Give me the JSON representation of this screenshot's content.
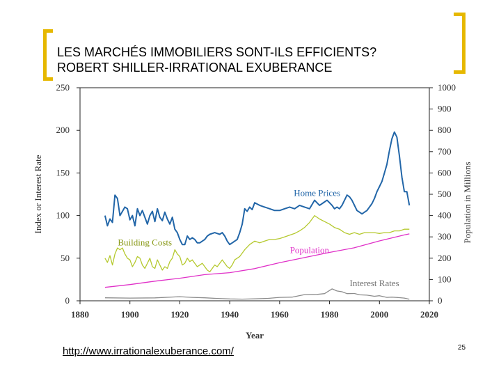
{
  "slide": {
    "title_line1": "LES MARCHÉS IMMOBILIERS SONT-ILS EFFICIENTS?",
    "title_line2": "ROBERT SHILLER-IRRATIONAL EXUBERANCE",
    "url": "http://www.irrationalexuberance.com/",
    "page_number": "25",
    "accent_color": "#e6b800"
  },
  "chart_data": {
    "type": "line",
    "title": "",
    "xlabel": "Year",
    "ylabel": "Index or Interest Rate",
    "y2label": "Population in Millions",
    "xlim": [
      1880,
      2020
    ],
    "ylim": [
      0,
      250
    ],
    "y2lim": [
      0,
      1000
    ],
    "xticks": [
      "1880",
      "1900",
      "1920",
      "1940",
      "1960",
      "1980",
      "2000",
      "2020"
    ],
    "yticks": [
      "0",
      "50",
      "100",
      "150",
      "200",
      "250"
    ],
    "y2ticks": [
      "0",
      "100",
      "200",
      "300",
      "400",
      "500",
      "600",
      "700",
      "800",
      "900",
      "1000"
    ],
    "grid": false,
    "series": [
      {
        "name": "Home Prices",
        "axis": "left",
        "color": "#2266a8",
        "x": [
          1890,
          1891,
          1892,
          1893,
          1894,
          1895,
          1896,
          1897,
          1898,
          1899,
          1900,
          1901,
          1902,
          1903,
          1904,
          1905,
          1906,
          1907,
          1908,
          1909,
          1910,
          1911,
          1912,
          1913,
          1914,
          1915,
          1916,
          1917,
          1918,
          1919,
          1920,
          1921,
          1922,
          1923,
          1924,
          1925,
          1926,
          1927,
          1928,
          1929,
          1930,
          1931,
          1932,
          1933,
          1934,
          1935,
          1936,
          1937,
          1938,
          1939,
          1940,
          1941,
          1942,
          1943,
          1944,
          1945,
          1946,
          1947,
          1948,
          1949,
          1950,
          1952,
          1954,
          1956,
          1958,
          1960,
          1962,
          1964,
          1966,
          1968,
          1970,
          1972,
          1974,
          1976,
          1977,
          1978,
          1979,
          1980,
          1981,
          1982,
          1983,
          1984,
          1985,
          1986,
          1987,
          1988,
          1989,
          1990,
          1991,
          1992,
          1993,
          1994,
          1995,
          1996,
          1997,
          1998,
          1999,
          2000,
          2001,
          2002,
          2003,
          2004,
          2005,
          2006,
          2007,
          2008,
          2009,
          2010,
          2011,
          2012
        ],
        "values": [
          100,
          88,
          96,
          92,
          124,
          120,
          100,
          105,
          110,
          108,
          95,
          100,
          88,
          108,
          100,
          106,
          98,
          90,
          100,
          105,
          93,
          108,
          98,
          94,
          104,
          96,
          90,
          98,
          84,
          80,
          72,
          66,
          66,
          76,
          72,
          74,
          72,
          68,
          68,
          70,
          72,
          76,
          78,
          79,
          80,
          79,
          78,
          80,
          76,
          70,
          66,
          68,
          70,
          72,
          80,
          90,
          108,
          105,
          110,
          107,
          115,
          112,
          110,
          108,
          106,
          106,
          108,
          110,
          108,
          112,
          110,
          108,
          118,
          112,
          114,
          116,
          118,
          115,
          112,
          108,
          110,
          108,
          112,
          118,
          124,
          122,
          118,
          112,
          106,
          104,
          102,
          104,
          106,
          110,
          114,
          120,
          128,
          134,
          140,
          150,
          160,
          176,
          190,
          198,
          192,
          170,
          145,
          128,
          128,
          112
        ]
      },
      {
        "name": "Building Costs",
        "axis": "left",
        "color": "#b5c92e",
        "x": [
          1890,
          1891,
          1892,
          1893,
          1894,
          1895,
          1896,
          1897,
          1898,
          1899,
          1900,
          1901,
          1902,
          1903,
          1904,
          1905,
          1906,
          1907,
          1908,
          1909,
          1910,
          1911,
          1912,
          1913,
          1914,
          1915,
          1916,
          1917,
          1918,
          1919,
          1920,
          1921,
          1922,
          1923,
          1924,
          1925,
          1926,
          1927,
          1928,
          1929,
          1930,
          1931,
          1932,
          1933,
          1934,
          1935,
          1936,
          1937,
          1938,
          1939,
          1940,
          1941,
          1942,
          1943,
          1944,
          1945,
          1946,
          1948,
          1950,
          1952,
          1954,
          1956,
          1958,
          1960,
          1962,
          1964,
          1966,
          1968,
          1970,
          1972,
          1974,
          1976,
          1978,
          1980,
          1982,
          1984,
          1986,
          1988,
          1990,
          1992,
          1994,
          1996,
          1998,
          2000,
          2002,
          2004,
          2006,
          2008,
          2010,
          2012
        ],
        "values": [
          50,
          45,
          53,
          42,
          55,
          62,
          60,
          62,
          55,
          50,
          48,
          40,
          45,
          52,
          50,
          42,
          38,
          44,
          50,
          40,
          38,
          48,
          42,
          36,
          40,
          38,
          46,
          50,
          60,
          55,
          52,
          42,
          44,
          50,
          46,
          48,
          44,
          40,
          42,
          44,
          40,
          36,
          34,
          38,
          42,
          40,
          44,
          48,
          44,
          40,
          38,
          42,
          48,
          50,
          52,
          56,
          60,
          66,
          70,
          68,
          70,
          72,
          72,
          73,
          75,
          77,
          79,
          82,
          86,
          92,
          100,
          96,
          93,
          90,
          86,
          84,
          80,
          78,
          80,
          78,
          80,
          80,
          80,
          79,
          80,
          80,
          82,
          82,
          84,
          84
        ]
      },
      {
        "name": "Population",
        "axis": "right",
        "color": "#e030c8",
        "x": [
          1890,
          1900,
          1910,
          1920,
          1930,
          1940,
          1950,
          1960,
          1970,
          1980,
          1990,
          2000,
          2010,
          2012
        ],
        "values": [
          63,
          76,
          92,
          106,
          123,
          132,
          151,
          179,
          203,
          227,
          249,
          281,
          309,
          314
        ]
      },
      {
        "name": "Interest Rates",
        "axis": "left",
        "color": "#8c8c8c",
        "x": [
          1890,
          1900,
          1910,
          1920,
          1925,
          1930,
          1935,
          1940,
          1945,
          1950,
          1955,
          1960,
          1965,
          1970,
          1975,
          1978,
          1981,
          1983,
          1985,
          1987,
          1990,
          1992,
          1995,
          1998,
          2000,
          2003,
          2005,
          2008,
          2010,
          2012
        ],
        "values": [
          3.5,
          3.2,
          3.4,
          4.8,
          4,
          3.5,
          2.8,
          2.2,
          2,
          2.3,
          2.8,
          4,
          4.3,
          7.3,
          7.5,
          8.4,
          14,
          11.5,
          10.6,
          8.4,
          8.6,
          7,
          6.6,
          5.3,
          6,
          4,
          4.3,
          3.7,
          3.2,
          1.8
        ]
      }
    ],
    "annotations": [
      {
        "text": "Home Prices",
        "x": 1975,
        "y": 123,
        "color": "#2266a8"
      },
      {
        "text": "Building Costs",
        "x": 1906,
        "y": 65,
        "color": "#8a9a1a"
      },
      {
        "text": "Population",
        "x": 1972,
        "y": 56,
        "color": "#e030c8"
      },
      {
        "text": "Interest Rates",
        "x": 1998,
        "y": 17,
        "color": "#707070"
      }
    ]
  }
}
